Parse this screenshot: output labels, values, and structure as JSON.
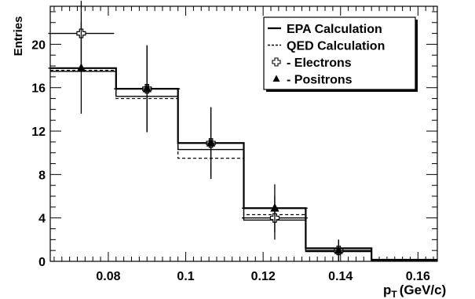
{
  "chart_data": {
    "type": "histogram",
    "title": "",
    "xlabel": "p",
    "xlabel_sub": "T",
    "xlabel_unit": "(GeV/c)",
    "ylabel": "Entries",
    "xlim": [
      0.065,
      0.165
    ],
    "ylim": [
      0,
      23.5
    ],
    "xticks": [
      0.08,
      0.1,
      0.12,
      0.14,
      0.16
    ],
    "xtick_labels": [
      "0.08",
      "0.1",
      "0.12",
      "0.14",
      "0.16"
    ],
    "yticks": [
      0,
      4,
      8,
      12,
      16,
      20
    ],
    "ytick_labels": [
      "0",
      "4",
      "8",
      "12",
      "16",
      "20"
    ],
    "legend_position": "top-right",
    "bin_edges": [
      0.065,
      0.082,
      0.098,
      0.115,
      0.131,
      0.148,
      0.165
    ],
    "series": [
      {
        "name": "EPA Calculation",
        "kind": "step",
        "style": "solid",
        "values": [
          17.8,
          15.9,
          10.9,
          4.9,
          1.2,
          0.15
        ],
        "lower_values": [
          17.5,
          15.2,
          10.3,
          3.8,
          0.9,
          0.1
        ]
      },
      {
        "name": "QED Calculation",
        "kind": "step",
        "style": "dashed",
        "values": [
          17.6,
          15.0,
          9.5,
          4.3,
          1.0,
          0.1
        ]
      },
      {
        "name": "- Electrons",
        "kind": "points",
        "marker": "open-cross",
        "x": [
          0.073,
          0.09,
          0.1065,
          0.123,
          0.1395
        ],
        "y": [
          21.0,
          15.9,
          10.9,
          4.0,
          1.0
        ],
        "xerr": [
          0.0085,
          0.0085,
          0.0085,
          0.0085,
          0.0085
        ],
        "yerr": [
          3.0,
          4.0,
          3.3,
          2.0,
          1.0
        ]
      },
      {
        "name": "- Positrons",
        "kind": "points",
        "marker": "filled-triangle",
        "x": [
          0.073,
          0.09,
          0.1065,
          0.123,
          0.1395
        ],
        "y": [
          17.8,
          15.9,
          10.9,
          4.9,
          1.0
        ],
        "xerr": [
          0.0085,
          0.0085,
          0.0085,
          0.0085,
          0.0085
        ],
        "yerr": [
          4.2,
          4.0,
          3.3,
          2.2,
          1.0
        ]
      }
    ]
  }
}
